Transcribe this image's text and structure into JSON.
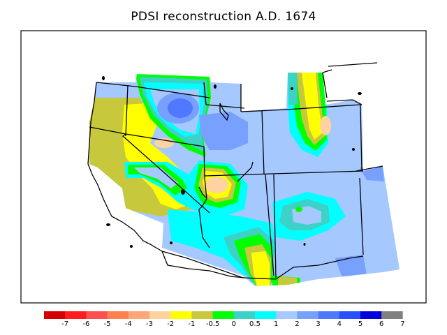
{
  "title": "PDSI reconstruction A.D. 1674",
  "colorbar": {
    "labels": [
      "-7",
      "-6",
      "-5",
      "-4",
      "-3",
      "-2",
      "-1",
      "-0.5",
      "0",
      "0.5",
      "1",
      "2",
      "3",
      "4",
      "5",
      "6",
      "7"
    ],
    "colors": [
      "#d40000",
      "#ff1c1c",
      "#ff4e4e",
      "#ff7f50",
      "#ffa578",
      "#ffd3a0",
      "#ffff00",
      "#c8c83c",
      "#00ff00",
      "#3cd2c8",
      "#00ffff",
      "#a5c8ff",
      "#78a0ff",
      "#5078ff",
      "#2850ff",
      "#0000dc",
      "#808080"
    ]
  },
  "palette": {
    "pale_blue": "#a5c8ff",
    "mid_blue": "#78a0ff",
    "blue": "#5078ff",
    "cyan": "#00ffff",
    "teal": "#3cd2c8",
    "green": "#00ff00",
    "olive": "#c8c83c",
    "yellow": "#ffff00",
    "peach": "#ffd3a0"
  }
}
